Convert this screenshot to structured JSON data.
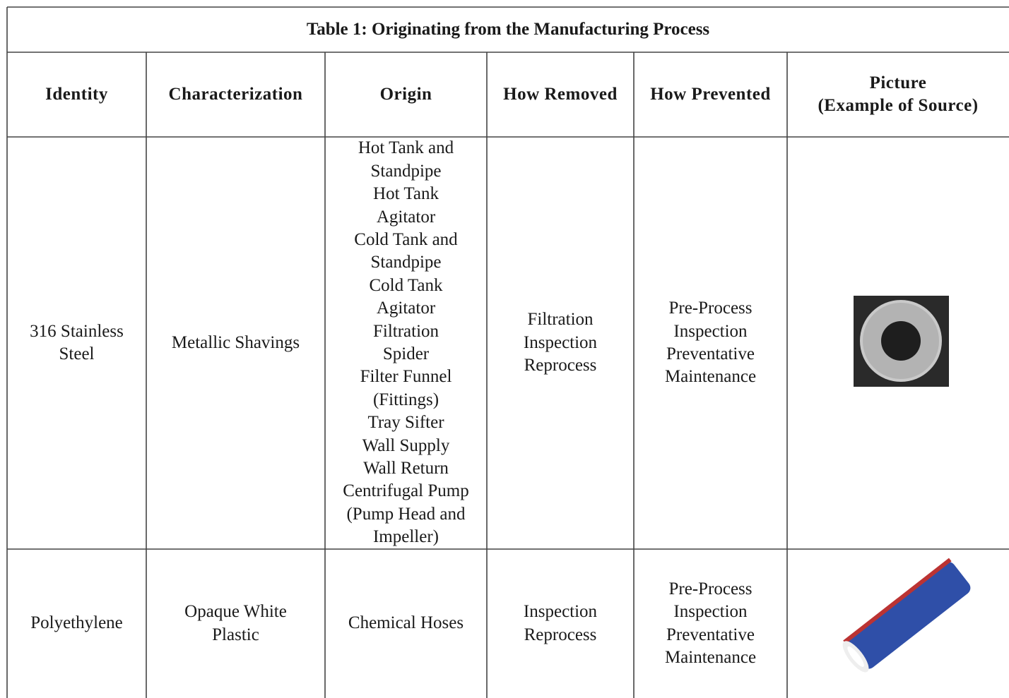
{
  "table": {
    "title": "Table 1: Originating from the Manufacturing Process",
    "header": [
      [
        "Identity"
      ],
      [
        "Characterization"
      ],
      [
        "Origin"
      ],
      [
        "How Removed"
      ],
      [
        "How Prevented"
      ],
      [
        "Picture",
        "(Example of Source)"
      ]
    ],
    "rows": [
      [
        [
          "316 Stainless",
          "Steel"
        ],
        [
          "Metallic Shavings"
        ],
        [
          "Hot Tank and",
          "Standpipe",
          "Hot Tank",
          "Agitator",
          "Cold Tank and",
          "Standpipe",
          "Cold Tank",
          "Agitator",
          "Filtration",
          "Spider",
          "Filter Funnel",
          "(Fittings)",
          "Tray Sifter",
          "Wall Supply",
          "Wall Return",
          "Centrifugal Pump",
          "(Pump Head and",
          "Impeller)"
        ],
        [
          "Filtration",
          "Inspection",
          "Reprocess"
        ],
        [
          "Pre-Process",
          "Inspection",
          "Preventative",
          "Maintenance"
        ]
      ],
      [
        [
          "Polyethylene"
        ],
        [
          "Opaque White",
          "Plastic"
        ],
        [
          "Chemical Hoses"
        ],
        [
          "Inspection",
          "Reprocess"
        ],
        [
          "Pre-Process",
          "Inspection",
          "Preventative",
          "Maintenance"
        ]
      ]
    ]
  }
}
